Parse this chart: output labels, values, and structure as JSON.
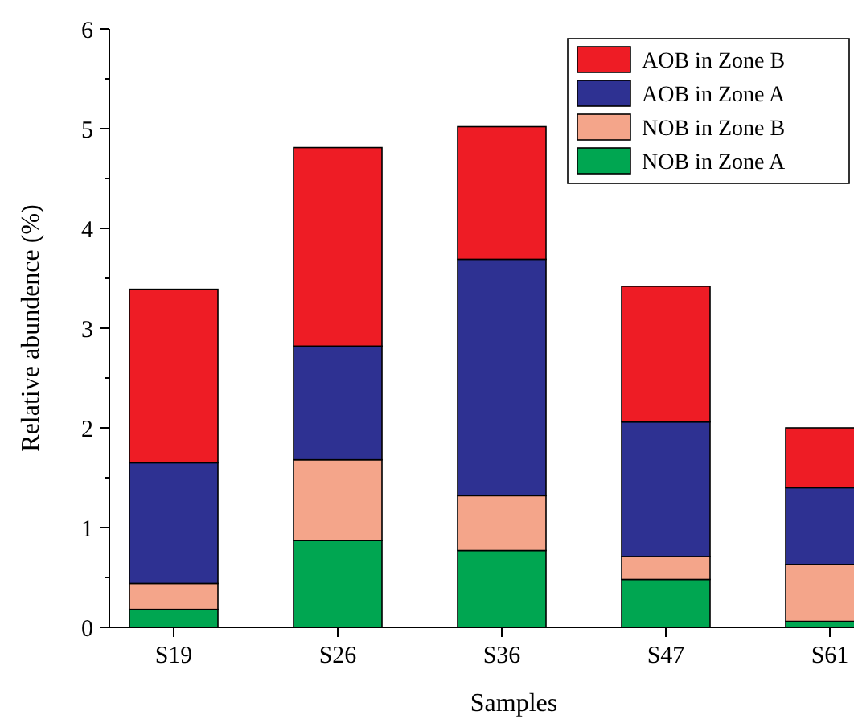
{
  "chart_data": {
    "type": "bar",
    "stacked": true,
    "xlabel": "Samples",
    "ylabel": "Relative abundence (%)",
    "categories": [
      "S19",
      "S26",
      "S36",
      "S47",
      "S61"
    ],
    "series": [
      {
        "name": "NOB in Zone A",
        "color": "#00a651",
        "values": [
          0.18,
          0.87,
          0.77,
          0.48,
          0.06
        ]
      },
      {
        "name": "NOB in Zone B",
        "color": "#f4a58a",
        "values": [
          0.26,
          0.81,
          0.55,
          0.23,
          0.57
        ]
      },
      {
        "name": "AOB in Zone A",
        "color": "#2e3192",
        "values": [
          1.21,
          1.14,
          2.37,
          1.35,
          0.77
        ]
      },
      {
        "name": "AOB in Zone B",
        "color": "#ee1c25",
        "values": [
          1.74,
          1.99,
          1.33,
          1.36,
          0.6
        ]
      }
    ],
    "ylim": [
      0,
      6
    ],
    "yticks": [
      0,
      {
        "value": 0.5,
        "label": null
      },
      1,
      {
        "value": 1.5,
        "label": null
      },
      2,
      {
        "value": 2.5,
        "label": null
      },
      3,
      {
        "value": 3.5,
        "label": null
      },
      4,
      {
        "value": 4.5,
        "label": null
      },
      5,
      {
        "value": 5.5,
        "label": null
      },
      6
    ],
    "legend": "top right"
  }
}
